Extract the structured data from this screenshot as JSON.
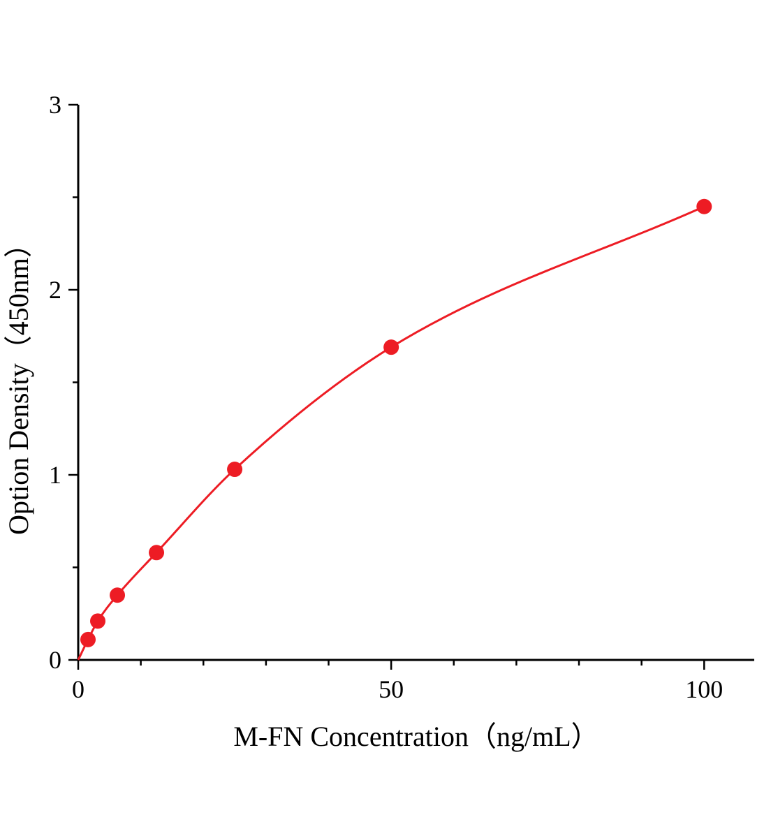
{
  "chart_data": {
    "type": "line",
    "title": "",
    "xlabel": "M-FN Concentration（ng/mL）",
    "ylabel": "Option Density（450nm）",
    "x": [
      0,
      1.563,
      3.125,
      6.25,
      12.5,
      25,
      50,
      100
    ],
    "y": [
      0,
      0.11,
      0.21,
      0.35,
      0.58,
      1.03,
      1.69,
      2.45
    ],
    "markers_from_index": 1,
    "xlim": [
      0,
      108
    ],
    "ylim": [
      0,
      3
    ],
    "x_major_ticks": [
      0,
      50,
      100
    ],
    "x_major_tick_labels": [
      "0",
      "50",
      "100"
    ],
    "x_minor_step": 10,
    "y_major_ticks": [
      0,
      1,
      2,
      3
    ],
    "y_major_tick_labels": [
      "0",
      "1",
      "2",
      "3"
    ],
    "y_minor_step": 0.5,
    "grid": false,
    "legend": null,
    "line_color": "#ed1c24",
    "marker_color": "#ed1c24",
    "axis_color": "#000000",
    "marker": "circle"
  }
}
